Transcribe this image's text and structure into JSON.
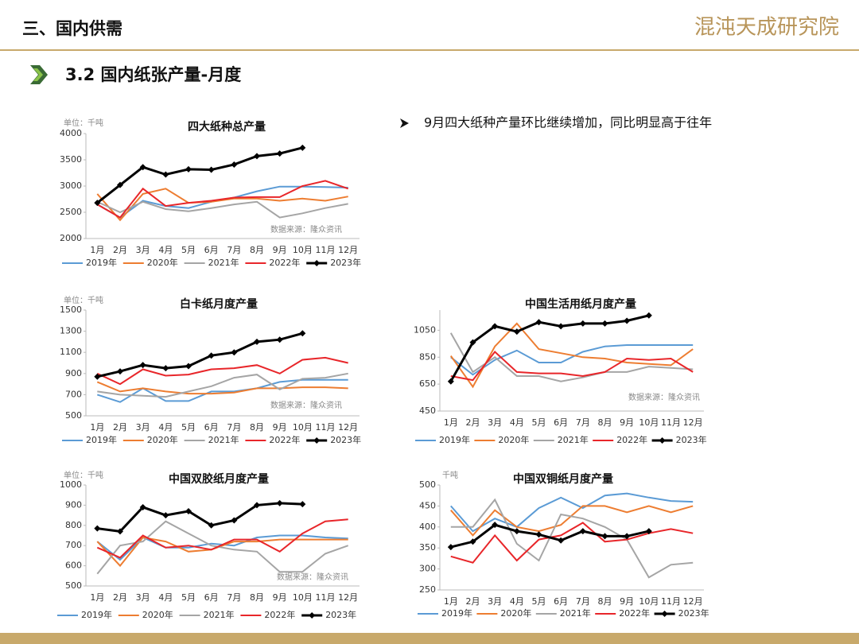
{
  "header": {
    "section": "三、国内供需",
    "logo": "混沌天成研究院",
    "subtitle": "3.2 国内纸张产量-月度",
    "bullet": "9月四大纸种产量环比继续增加，同比明显高于往年"
  },
  "chart_data": [
    {
      "type": "line",
      "title": "四大纸种总产量",
      "unit": "单位：千吨",
      "source": "数据来源：隆众资讯",
      "categories": [
        "1月",
        "2月",
        "3月",
        "4月",
        "5月",
        "6月",
        "7月",
        "8月",
        "9月",
        "10月",
        "11月",
        "12月"
      ],
      "ylim": [
        2000,
        4000
      ],
      "yticks": [
        2000,
        2500,
        3000,
        3500,
        4000
      ],
      "series": [
        {
          "name": "2019年",
          "color": "#5b9bd5",
          "values": [
            2650,
            2400,
            2720,
            2620,
            2580,
            2700,
            2780,
            2900,
            2990,
            2990,
            2980,
            2970
          ]
        },
        {
          "name": "2020年",
          "color": "#ed7d31",
          "values": [
            2850,
            2350,
            2850,
            2950,
            2680,
            2700,
            2760,
            2760,
            2720,
            2760,
            2720,
            2800
          ]
        },
        {
          "name": "2021年",
          "color": "#a5a5a5",
          "values": [
            2700,
            2500,
            2700,
            2560,
            2520,
            2580,
            2650,
            2700,
            2400,
            2480,
            2580,
            2660
          ]
        },
        {
          "name": "2022年",
          "color": "#e8262a",
          "values": [
            2650,
            2400,
            2950,
            2620,
            2680,
            2720,
            2780,
            2790,
            2790,
            3000,
            3100,
            2950
          ]
        },
        {
          "name": "2023年",
          "color": "#000000",
          "marker": "diamond",
          "values": [
            2680,
            3020,
            3360,
            3220,
            3320,
            3310,
            3410,
            3570,
            3620,
            3730,
            null,
            null
          ]
        }
      ]
    },
    {
      "type": "line",
      "title": "白卡纸月度产量",
      "unit": "单位：千吨",
      "source": "数据来源：隆众资讯",
      "categories": [
        "1月",
        "2月",
        "3月",
        "4月",
        "5月",
        "6月",
        "7月",
        "8月",
        "9月",
        "10月",
        "11月",
        "12月"
      ],
      "ylim": [
        500,
        1500
      ],
      "yticks": [
        500,
        700,
        900,
        1100,
        1300,
        1500
      ],
      "series": [
        {
          "name": "2019年",
          "color": "#5b9bd5",
          "values": [
            700,
            630,
            760,
            640,
            640,
            730,
            730,
            760,
            820,
            840,
            840,
            840
          ]
        },
        {
          "name": "2020年",
          "color": "#ed7d31",
          "values": [
            820,
            730,
            760,
            730,
            710,
            710,
            720,
            760,
            760,
            770,
            770,
            760
          ]
        },
        {
          "name": "2021年",
          "color": "#a5a5a5",
          "values": [
            730,
            700,
            690,
            680,
            730,
            780,
            860,
            890,
            750,
            850,
            860,
            900
          ]
        },
        {
          "name": "2022年",
          "color": "#e8262a",
          "values": [
            900,
            800,
            940,
            880,
            890,
            940,
            950,
            980,
            900,
            1030,
            1050,
            1000
          ]
        },
        {
          "name": "2023年",
          "color": "#000000",
          "marker": "diamond",
          "values": [
            870,
            920,
            980,
            950,
            970,
            1070,
            1100,
            1200,
            1220,
            1280,
            null,
            null
          ]
        }
      ]
    },
    {
      "type": "line",
      "title": "中国生活用纸月度产量",
      "source": "数据来源：隆众资讯",
      "categories": [
        "1月",
        "2月",
        "3月",
        "4月",
        "5月",
        "6月",
        "7月",
        "8月",
        "9月",
        "10月",
        "11月",
        "12月"
      ],
      "ylim": [
        450,
        1200
      ],
      "yticks": [
        450,
        650,
        850,
        1050
      ],
      "series": [
        {
          "name": "2019年",
          "color": "#5b9bd5",
          "values": [
            850,
            720,
            830,
            900,
            810,
            810,
            890,
            930,
            940,
            940,
            940,
            940
          ]
        },
        {
          "name": "2020年",
          "color": "#ed7d31",
          "values": [
            860,
            630,
            930,
            1100,
            910,
            880,
            850,
            840,
            810,
            800,
            790,
            910
          ]
        },
        {
          "name": "2021年",
          "color": "#a5a5a5",
          "values": [
            1030,
            740,
            850,
            710,
            710,
            670,
            700,
            740,
            740,
            780,
            770,
            760
          ]
        },
        {
          "name": "2022年",
          "color": "#e8262a",
          "values": [
            710,
            680,
            890,
            740,
            730,
            730,
            710,
            740,
            840,
            830,
            840,
            740
          ]
        },
        {
          "name": "2023年",
          "color": "#000000",
          "marker": "diamond",
          "values": [
            670,
            960,
            1080,
            1040,
            1110,
            1080,
            1100,
            1100,
            1120,
            1160,
            null,
            null
          ]
        }
      ]
    },
    {
      "type": "line",
      "title": "中国双胶纸月度产量",
      "unit": "单位：千吨",
      "source": "数据来源：隆众资讯",
      "categories": [
        "1月",
        "2月",
        "3月",
        "4月",
        "5月",
        "6月",
        "7月",
        "8月",
        "9月",
        "10月",
        "11月",
        "12月"
      ],
      "ylim": [
        500,
        1000
      ],
      "yticks": [
        500,
        600,
        700,
        800,
        900,
        1000
      ],
      "series": [
        {
          "name": "2019年",
          "color": "#5b9bd5",
          "values": [
            720,
            630,
            740,
            690,
            690,
            710,
            700,
            740,
            750,
            750,
            740,
            735
          ]
        },
        {
          "name": "2020年",
          "color": "#ed7d31",
          "values": [
            720,
            600,
            740,
            720,
            670,
            680,
            720,
            720,
            730,
            730,
            730,
            730
          ]
        },
        {
          "name": "2021年",
          "color": "#a5a5a5",
          "values": [
            560,
            700,
            720,
            820,
            760,
            700,
            680,
            670,
            570,
            570,
            660,
            700
          ]
        },
        {
          "name": "2022年",
          "color": "#e8262a",
          "values": [
            690,
            640,
            750,
            690,
            700,
            680,
            730,
            730,
            670,
            760,
            820,
            830
          ]
        },
        {
          "name": "2023年",
          "color": "#000000",
          "marker": "diamond",
          "values": [
            785,
            770,
            890,
            850,
            870,
            800,
            825,
            900,
            910,
            905,
            null,
            null
          ]
        }
      ]
    },
    {
      "type": "line",
      "title": "中国双铜纸月度产量",
      "unit": "千吨",
      "categories": [
        "1月",
        "2月",
        "3月",
        "4月",
        "5月",
        "6月",
        "7月",
        "8月",
        "9月",
        "10月",
        "11月",
        "12月"
      ],
      "ylim": [
        250,
        500
      ],
      "yticks": [
        250,
        300,
        350,
        400,
        450,
        500
      ],
      "series": [
        {
          "name": "2019年",
          "color": "#5b9bd5",
          "values": [
            450,
            390,
            420,
            400,
            445,
            470,
            445,
            475,
            480,
            470,
            462,
            460
          ]
        },
        {
          "name": "2020年",
          "color": "#ed7d31",
          "values": [
            440,
            380,
            440,
            400,
            390,
            405,
            450,
            450,
            435,
            450,
            435,
            450
          ]
        },
        {
          "name": "2021年",
          "color": "#a5a5a5",
          "values": [
            400,
            400,
            465,
            360,
            320,
            430,
            420,
            400,
            370,
            280,
            310,
            315
          ]
        },
        {
          "name": "2022年",
          "color": "#e8262a",
          "values": [
            330,
            315,
            380,
            320,
            370,
            380,
            410,
            365,
            370,
            385,
            395,
            385
          ]
        },
        {
          "name": "2023年",
          "color": "#000000",
          "marker": "diamond",
          "values": [
            352,
            365,
            405,
            390,
            382,
            368,
            390,
            378,
            378,
            390,
            null,
            null
          ]
        }
      ]
    }
  ]
}
